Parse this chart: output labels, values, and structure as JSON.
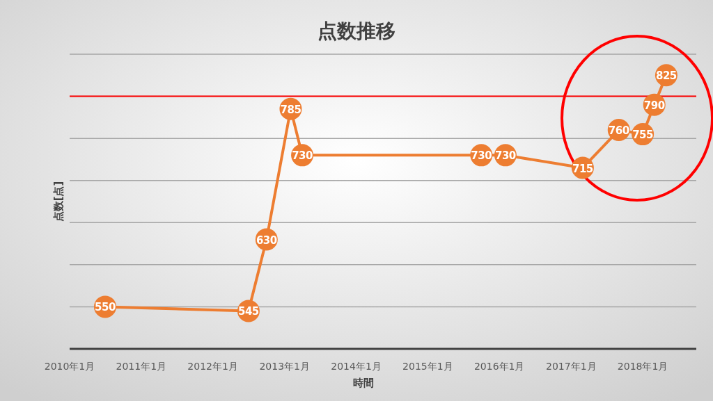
{
  "chart_data": {
    "type": "line",
    "title": "点数推移",
    "xlabel": "時間",
    "ylabel": "点数[点]",
    "x": [
      "2010-07",
      "2012-07",
      "2012-10",
      "2013-02",
      "2013-04",
      "2015-10",
      "2016-02",
      "2017-03",
      "2017-09",
      "2018-01",
      "2018-03",
      "2018-05"
    ],
    "series": [
      {
        "color": "#ed7d31",
        "values": [
          550,
          545,
          630,
          785,
          730,
          730,
          730,
          715,
          760,
          755,
          790,
          825
        ]
      }
    ],
    "xlim": [
      "2010-01",
      "2018-10"
    ],
    "xticks": [
      {
        "value": "2010-01",
        "label": "2010年1月"
      },
      {
        "value": "2011-01",
        "label": "2011年1月"
      },
      {
        "value": "2012-01",
        "label": "2012年1月"
      },
      {
        "value": "2013-01",
        "label": "2013年1月"
      },
      {
        "value": "2014-01",
        "label": "2014年1月"
      },
      {
        "value": "2015-01",
        "label": "2015年1月"
      },
      {
        "value": "2016-01",
        "label": "2016年1月"
      },
      {
        "value": "2017-01",
        "label": "2017年1月"
      },
      {
        "value": "2018-01",
        "label": "2018年1月"
      }
    ],
    "ylim": [
      500,
      850
    ],
    "yticks": [
      {
        "value": 550,
        "label": null
      },
      {
        "value": 600,
        "label": null
      },
      {
        "value": 650,
        "label": null
      },
      {
        "value": 700,
        "label": null
      },
      {
        "value": 750,
        "label": null
      },
      {
        "value": 800,
        "label": null
      },
      {
        "value": 850,
        "label": null
      }
    ],
    "tick_labels": "x",
    "grid": "y",
    "marker": "circle",
    "line_style": "solid",
    "data_labels": true,
    "ref_lines": [
      {
        "axis": "y",
        "value": 800,
        "color": "#ff0000"
      }
    ]
  }
}
